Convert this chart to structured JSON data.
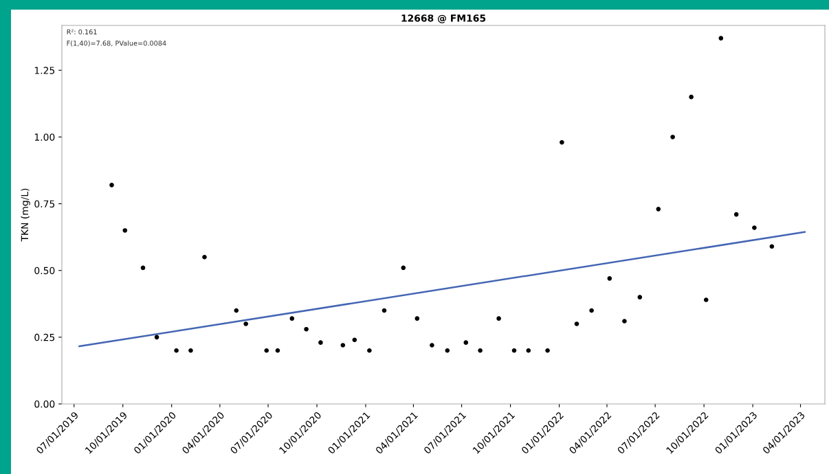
{
  "chart_data": {
    "type": "scatter",
    "title": "12668 @ FM165",
    "ylabel": "TKN (mg/L)",
    "annotations": [
      "R²: 0.161",
      "F(1,40)=7.68, PValue=0.0084"
    ],
    "series": [
      {
        "color": "#000000",
        "marker": "circle",
        "x": [
          "2019-09-10",
          "2019-10-05",
          "2019-11-08",
          "2019-12-04",
          "2020-01-10",
          "2020-02-06",
          "2020-03-03",
          "2020-05-02",
          "2020-05-20",
          "2020-06-28",
          "2020-07-19",
          "2020-08-15",
          "2020-09-11",
          "2020-10-08",
          "2020-11-19",
          "2020-12-11",
          "2021-01-08",
          "2021-02-05",
          "2021-03-13",
          "2021-04-08",
          "2021-05-06",
          "2021-06-04",
          "2021-07-09",
          "2021-08-05",
          "2021-09-09",
          "2021-10-08",
          "2021-11-04",
          "2021-12-10",
          "2022-01-06",
          "2022-02-03",
          "2022-03-03",
          "2022-04-06",
          "2022-05-04",
          "2022-06-02",
          "2022-07-07",
          "2022-08-03",
          "2022-09-07",
          "2022-10-05",
          "2022-11-02",
          "2022-12-01",
          "2023-01-04",
          "2023-02-06"
        ],
        "values": [
          0.82,
          0.65,
          0.51,
          0.25,
          0.2,
          0.2,
          0.55,
          0.35,
          0.3,
          0.2,
          0.2,
          0.32,
          0.28,
          0.23,
          0.22,
          0.24,
          0.2,
          0.35,
          0.51,
          0.32,
          0.22,
          0.2,
          0.23,
          0.2,
          0.32,
          0.2,
          0.2,
          0.2,
          0.98,
          0.3,
          0.35,
          0.47,
          0.31,
          0.4,
          0.73,
          1.0,
          1.15,
          0.39,
          1.37,
          0.71,
          0.66,
          0.59
        ]
      },
      {
        "type": "line",
        "color": "#4466b4",
        "marker": "none",
        "line_style": "solid",
        "x": [
          "2019-07-11",
          "2023-04-09"
        ],
        "values": [
          0.216,
          0.644
        ]
      }
    ],
    "xlim": [
      "2019-06-08",
      "2023-05-17"
    ],
    "xticks": [
      {
        "value": "2019-07-01",
        "label": "07/01/2019"
      },
      {
        "value": "2019-10-01",
        "label": "10/01/2019"
      },
      {
        "value": "2020-01-01",
        "label": "01/01/2020"
      },
      {
        "value": "2020-04-01",
        "label": "04/01/2020"
      },
      {
        "value": "2020-07-01",
        "label": "07/01/2020"
      },
      {
        "value": "2020-10-01",
        "label": "10/01/2020"
      },
      {
        "value": "2021-01-01",
        "label": "01/01/2021"
      },
      {
        "value": "2021-04-01",
        "label": "04/01/2021"
      },
      {
        "value": "2021-07-01",
        "label": "07/01/2021"
      },
      {
        "value": "2021-10-01",
        "label": "10/01/2021"
      },
      {
        "value": "2022-01-01",
        "label": "01/01/2022"
      },
      {
        "value": "2022-04-01",
        "label": "04/01/2022"
      },
      {
        "value": "2022-07-01",
        "label": "07/01/2022"
      },
      {
        "value": "2022-10-01",
        "label": "10/01/2022"
      },
      {
        "value": "2023-01-01",
        "label": "01/01/2023"
      },
      {
        "value": "2023-04-01",
        "label": "04/01/2023"
      }
    ],
    "ylim": [
      0,
      1.418
    ],
    "yticks": [
      {
        "value": 0,
        "label": "0.00"
      },
      {
        "value": 0.25,
        "label": "0.25"
      },
      {
        "value": 0.5,
        "label": "0.50"
      },
      {
        "value": 0.75,
        "label": "0.75"
      },
      {
        "value": 1.0,
        "label": "1.00"
      },
      {
        "value": 1.25,
        "label": "1.25"
      }
    ],
    "grid": false,
    "legend": false
  }
}
